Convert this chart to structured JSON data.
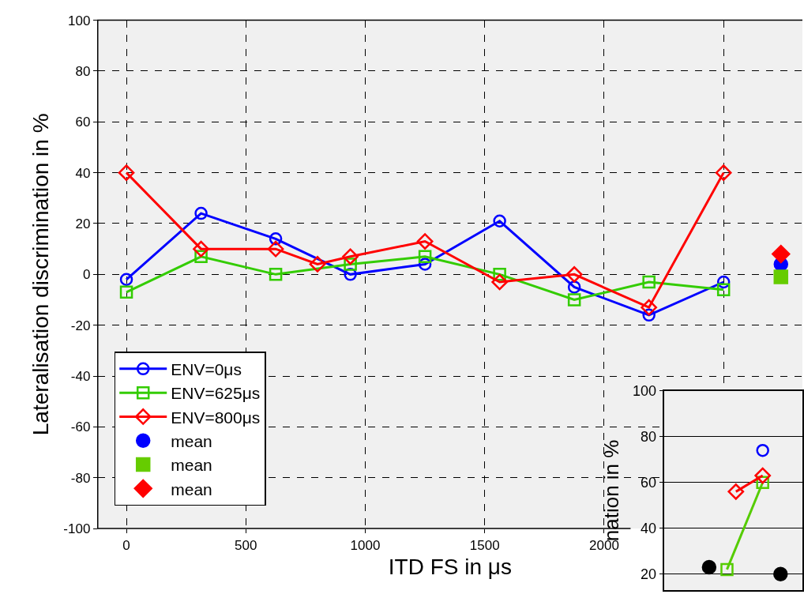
{
  "chart_data": [
    {
      "type": "line",
      "xlabel": "ITD FS in μs",
      "ylabel": "Lateralisation discrimination in %",
      "xlim": [
        -120,
        2830
      ],
      "ylim": [
        -100,
        100
      ],
      "xticks": [
        0,
        500,
        1000,
        1500,
        2000,
        {
          "value": 2500,
          "label": null
        }
      ],
      "yticks": [
        -100,
        -80,
        -60,
        -40,
        -20,
        0,
        20,
        40,
        60,
        80,
        100
      ],
      "grid": true,
      "legend": "bottom left",
      "series": [
        {
          "name": "ENV=0μs",
          "color": "#0000ff",
          "marker": "circle",
          "x": [
            0,
            312.5,
            625,
            937.5,
            1250,
            1562.5,
            1875,
            2187.5,
            2500
          ],
          "values": [
            -2,
            24,
            14,
            0,
            4,
            21,
            -5,
            -16,
            -3
          ]
        },
        {
          "name": "ENV=625μs",
          "color": "#33cc00",
          "marker": "square",
          "x": [
            0,
            312.5,
            625,
            937.5,
            1250,
            1562.5,
            1875,
            2187.5,
            2500
          ],
          "values": [
            -7,
            7,
            0,
            4,
            7,
            0,
            -10,
            -3,
            -6
          ]
        },
        {
          "name": "ENV=800μs",
          "color": "#ff0000",
          "marker": "diamond",
          "x": [
            0,
            312.5,
            625,
            800,
            937.5,
            1250,
            1562.5,
            1875,
            2187.5,
            2500
          ],
          "values": [
            40,
            10,
            10,
            4,
            7,
            13,
            -3,
            0,
            -13,
            40
          ]
        },
        {
          "name": "mean",
          "color": "#0000ff",
          "type": "scatter",
          "marker": "circle",
          "x": [
            2740
          ],
          "values": [
            4
          ]
        },
        {
          "name": "mean",
          "color": "#66cc00",
          "type": "scatter",
          "marker": "square",
          "x": [
            2740
          ],
          "values": [
            -1
          ]
        },
        {
          "name": "mean",
          "color": "#ff0000",
          "type": "scatter",
          "marker": "diamond",
          "x": [
            2740
          ],
          "values": [
            8
          ]
        }
      ]
    },
    {
      "type": "line",
      "ylabel": "nation in %",
      "ylim": [
        13,
        100
      ],
      "yticks": [
        20,
        40,
        60,
        80,
        100
      ],
      "grid": "y",
      "tick_labels": "y",
      "categories": [
        null,
        null,
        null,
        null,
        null,
        null,
        null,
        null,
        null,
        null,
        null,
        null,
        null,
        null,
        null,
        null
      ],
      "series": [
        {
          "color": "#0000ff",
          "marker": "circle",
          "values": [
            null,
            null,
            null,
            null,
            null,
            null,
            null,
            null,
            null,
            null,
            null,
            74,
            null,
            null,
            null,
            null
          ]
        },
        {
          "color": "#55cc00",
          "marker": "square",
          "values": [
            null,
            null,
            null,
            null,
            null,
            null,
            null,
            22,
            null,
            null,
            null,
            60,
            null,
            null,
            null,
            null
          ]
        },
        {
          "color": "#ff0000",
          "marker": "diamond",
          "values": [
            null,
            null,
            null,
            null,
            null,
            null,
            null,
            null,
            56,
            null,
            null,
            63,
            null,
            null,
            null,
            null
          ]
        },
        {
          "color": "#000000",
          "type": "scatter",
          "marker": "circle",
          "values": [
            null,
            null,
            null,
            null,
            null,
            23,
            null,
            null,
            null,
            null,
            null,
            null,
            null,
            20,
            null,
            null
          ]
        }
      ]
    }
  ]
}
